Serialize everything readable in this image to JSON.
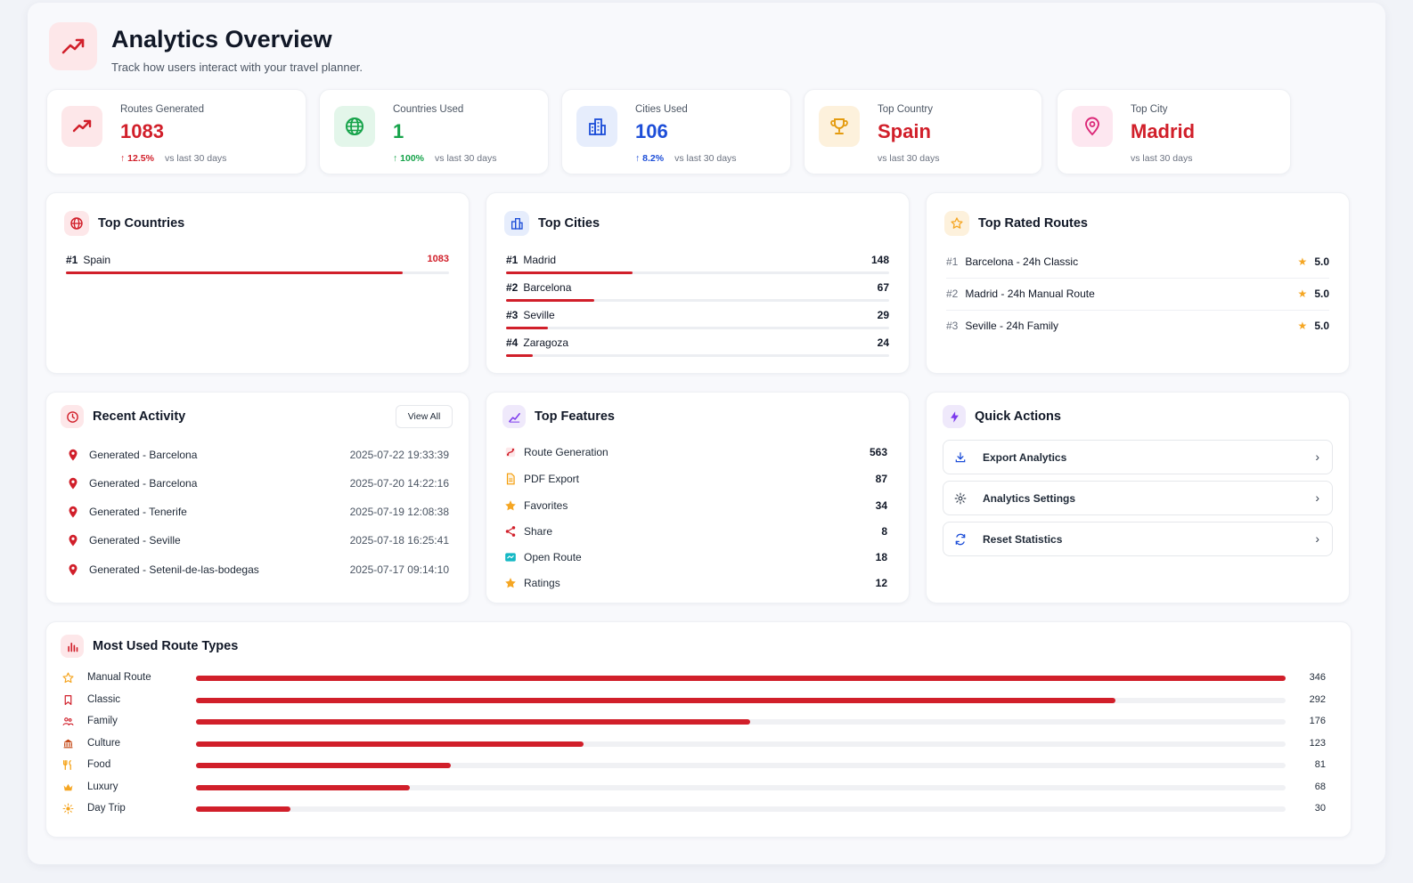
{
  "header": {
    "title": "Analytics Overview",
    "subtitle": "Track how users interact with your travel planner."
  },
  "stats": [
    {
      "label": "Routes Generated",
      "value": "1083",
      "change": "↑ 12.5%",
      "period": "vs last 30 days",
      "color": "#d11f2a"
    },
    {
      "label": "Countries Used",
      "value": "1",
      "change": "↑ 100%",
      "period": "vs last 30 days",
      "color": "#16a34a"
    },
    {
      "label": "Cities Used",
      "value": "106",
      "change": "↑ 8.2%",
      "period": "vs last 30 days",
      "color": "#1d4ed8"
    },
    {
      "label": "Top Country",
      "value": "Spain",
      "change": "",
      "period": "vs last 30 days",
      "color": "#d11f2a"
    },
    {
      "label": "Top City",
      "value": "Madrid",
      "change": "",
      "period": "vs last 30 days",
      "color": "#d11f2a"
    }
  ],
  "top_countries": {
    "title": "Top Countries",
    "items": [
      {
        "rank": "#1",
        "name": "Spain",
        "value": "1083",
        "share": 0.88
      }
    ]
  },
  "top_cities": {
    "title": "Top Cities",
    "items": [
      {
        "rank": "#1",
        "name": "Madrid",
        "value": "148",
        "share": 0.33
      },
      {
        "rank": "#2",
        "name": "Barcelona",
        "value": "67",
        "share": 0.23
      },
      {
        "rank": "#3",
        "name": "Seville",
        "value": "29",
        "share": 0.11
      },
      {
        "rank": "#4",
        "name": "Zaragoza",
        "value": "24",
        "share": 0.07
      }
    ]
  },
  "top_rated": {
    "title": "Top Rated Routes",
    "items": [
      {
        "rank": "#1",
        "name": "Barcelona - 24h Classic",
        "score": "5.0"
      },
      {
        "rank": "#2",
        "name": "Madrid - 24h Manual Route",
        "score": "5.0"
      },
      {
        "rank": "#3",
        "name": "Seville - 24h Family",
        "score": "5.0"
      }
    ]
  },
  "recent_activity": {
    "title": "Recent Activity",
    "view_all": "View All",
    "items": [
      {
        "text": "Generated - Barcelona",
        "time": "2025-07-22 19:33:39"
      },
      {
        "text": "Generated - Barcelona",
        "time": "2025-07-20 14:22:16"
      },
      {
        "text": "Generated - Tenerife",
        "time": "2025-07-19 12:08:38"
      },
      {
        "text": "Generated - Seville",
        "time": "2025-07-18 16:25:41"
      },
      {
        "text": "Generated - Setenil-de-las-bodegas",
        "time": "2025-07-17 09:14:10"
      }
    ]
  },
  "top_features": {
    "title": "Top Features",
    "items": [
      {
        "name": "Route Generation",
        "value": "563",
        "icon": "route-icon",
        "color": "#d11f2a"
      },
      {
        "name": "PDF Export",
        "value": "87",
        "icon": "file-icon",
        "color": "#f59e0b"
      },
      {
        "name": "Favorites",
        "value": "34",
        "icon": "star-icon",
        "color": "#f5a623"
      },
      {
        "name": "Share",
        "value": "8",
        "icon": "share-icon",
        "color": "#d11f2a"
      },
      {
        "name": "Open Route",
        "value": "18",
        "icon": "map-icon",
        "color": "#14b8c4"
      },
      {
        "name": "Ratings",
        "value": "12",
        "icon": "star-icon",
        "color": "#f5a623"
      }
    ]
  },
  "quick_actions": {
    "title": "Quick Actions",
    "items": [
      {
        "label": "Export Analytics",
        "icon": "download-icon"
      },
      {
        "label": "Analytics Settings",
        "icon": "gear-icon"
      },
      {
        "label": "Reset Statistics",
        "icon": "refresh-icon"
      }
    ]
  },
  "route_types": {
    "title": "Most Used Route Types",
    "max": 346,
    "items": [
      {
        "name": "Manual Route",
        "value": 346,
        "icon": "star-icon"
      },
      {
        "name": "Classic",
        "value": 292,
        "icon": "bookmark-icon"
      },
      {
        "name": "Family",
        "value": 176,
        "icon": "family-icon"
      },
      {
        "name": "Culture",
        "value": 123,
        "icon": "museum-icon"
      },
      {
        "name": "Food",
        "value": 81,
        "icon": "utensils-icon"
      },
      {
        "name": "Luxury",
        "value": 68,
        "icon": "crown-icon"
      },
      {
        "name": "Day Trip",
        "value": 30,
        "icon": "sun-icon"
      }
    ]
  },
  "colors": {
    "accent": "#d11f2a",
    "green": "#16a34a",
    "blue": "#1d4ed8",
    "amber": "#f5a623"
  }
}
